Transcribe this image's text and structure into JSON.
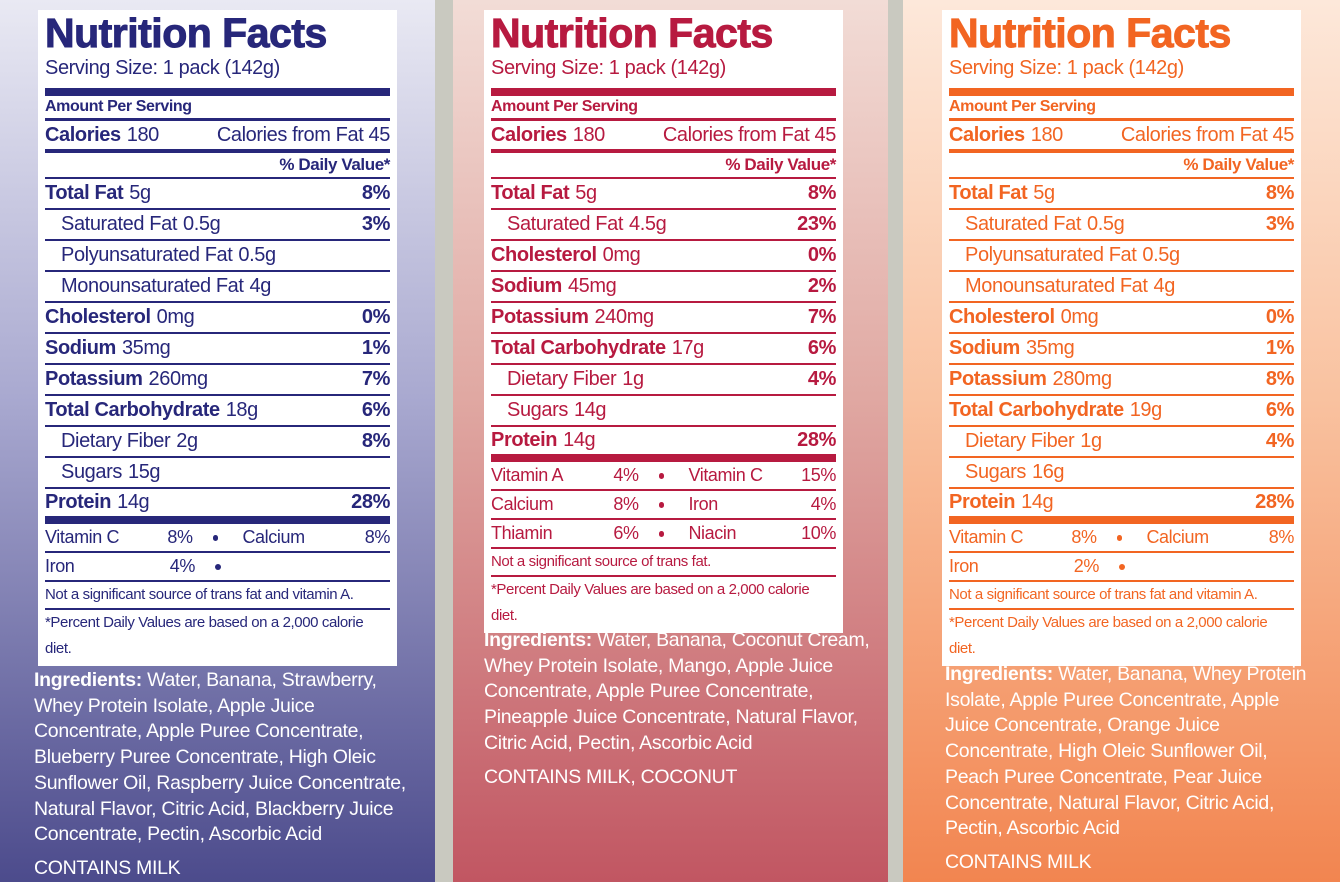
{
  "panels": [
    {
      "title": "Nutrition Facts",
      "serving": "Serving Size: 1 pack (142g)",
      "amount_header": "Amount Per Serving",
      "calories_label": "Calories",
      "calories_value": "180",
      "fat_calories": "Calories from Fat 45",
      "dv_header": "% Daily Value*",
      "nutrients": [
        {
          "name": "Total Fat",
          "amount": "5g",
          "dv": "8%"
        },
        {
          "name": "Saturated Fat",
          "amount": "0.5g",
          "dv": "3%",
          "indent": true
        },
        {
          "name": "Polyunsaturated Fat",
          "amount": "0.5g",
          "indent": true
        },
        {
          "name": "Monounsaturated Fat",
          "amount": "4g",
          "indent": true
        },
        {
          "name": "Cholesterol",
          "amount": "0mg",
          "dv": "0%"
        },
        {
          "name": "Sodium",
          "amount": "35mg",
          "dv": "1%"
        },
        {
          "name": "Potassium",
          "amount": "260mg",
          "dv": "7%"
        },
        {
          "name": "Total Carbohydrate",
          "amount": "18g",
          "dv": "6%"
        },
        {
          "name": "Dietary Fiber",
          "amount": "2g",
          "dv": "8%",
          "indent": true
        },
        {
          "name": "Sugars",
          "amount": "15g",
          "indent": true
        },
        {
          "name": "Protein",
          "amount": "14g",
          "dv": "28%"
        }
      ],
      "vitamins": [
        [
          {
            "name": "Vitamin C",
            "value": "8%"
          },
          {
            "name": "Calcium",
            "value": "8%"
          }
        ],
        [
          {
            "name": "Iron",
            "value": "4%"
          }
        ]
      ],
      "footnotes": [
        "Not a significant source of trans fat and vitamin A.",
        "*Percent Daily Values are based on a 2,000 calorie diet."
      ],
      "ingredients_label": "Ingredients:",
      "ingredients": "Water, Banana, Strawberry, Whey Protein Isolate, Apple Juice Concentrate, Apple Puree Concentrate, Blueberry Puree Concentrate, High Oleic Sunflower Oil, Raspberry Juice Concentrate, Natural Flavor, Citric Acid, Blackberry Juice Concentrate, Pectin, Ascorbic Acid",
      "contains": "CONTAINS MILK"
    },
    {
      "title": "Nutrition Facts",
      "serving": "Serving Size: 1 pack (142g)",
      "amount_header": "Amount Per Serving",
      "calories_label": "Calories",
      "calories_value": "180",
      "fat_calories": "Calories from Fat 45",
      "dv_header": "% Daily Value*",
      "nutrients": [
        {
          "name": "Total Fat",
          "amount": "5g",
          "dv": "8%"
        },
        {
          "name": "Saturated Fat",
          "amount": "4.5g",
          "dv": "23%",
          "indent": true
        },
        {
          "name": "Cholesterol",
          "amount": "0mg",
          "dv": "0%"
        },
        {
          "name": "Sodium",
          "amount": "45mg",
          "dv": "2%"
        },
        {
          "name": "Potassium",
          "amount": "240mg",
          "dv": "7%"
        },
        {
          "name": "Total Carbohydrate",
          "amount": "17g",
          "dv": "6%"
        },
        {
          "name": "Dietary Fiber",
          "amount": "1g",
          "dv": "4%",
          "indent": true
        },
        {
          "name": "Sugars",
          "amount": "14g",
          "indent": true
        },
        {
          "name": "Protein",
          "amount": "14g",
          "dv": "28%"
        }
      ],
      "vitamins": [
        [
          {
            "name": "Vitamin A",
            "value": "4%"
          },
          {
            "name": "Vitamin C",
            "value": "15%"
          }
        ],
        [
          {
            "name": "Calcium",
            "value": "8%"
          },
          {
            "name": "Iron",
            "value": "4%"
          }
        ],
        [
          {
            "name": "Thiamin",
            "value": "6%"
          },
          {
            "name": "Niacin",
            "value": "10%"
          }
        ]
      ],
      "footnotes": [
        "Not a significant source of trans fat.",
        "*Percent Daily Values are based on a 2,000 calorie diet."
      ],
      "ingredients_label": "Ingredients:",
      "ingredients": "Water, Banana, Coconut Cream, Whey Protein Isolate, Mango, Apple Juice Concentrate, Apple Puree Concentrate, Pineapple Juice Concentrate, Natural Flavor, Citric Acid, Pectin, Ascorbic Acid",
      "contains": "CONTAINS MILK, COCONUT"
    },
    {
      "title": "Nutrition Facts",
      "serving": "Serving Size: 1 pack (142g)",
      "amount_header": "Amount Per Serving",
      "calories_label": "Calories",
      "calories_value": "180",
      "fat_calories": "Calories from Fat 45",
      "dv_header": "% Daily Value*",
      "nutrients": [
        {
          "name": "Total Fat",
          "amount": "5g",
          "dv": "8%"
        },
        {
          "name": "Saturated Fat",
          "amount": "0.5g",
          "dv": "3%",
          "indent": true
        },
        {
          "name": "Polyunsaturated Fat",
          "amount": "0.5g",
          "indent": true
        },
        {
          "name": "Monounsaturated Fat",
          "amount": "4g",
          "indent": true
        },
        {
          "name": "Cholesterol",
          "amount": "0mg",
          "dv": "0%"
        },
        {
          "name": "Sodium",
          "amount": "35mg",
          "dv": "1%"
        },
        {
          "name": "Potassium",
          "amount": "280mg",
          "dv": "8%"
        },
        {
          "name": "Total Carbohydrate",
          "amount": "19g",
          "dv": "6%"
        },
        {
          "name": "Dietary Fiber",
          "amount": "1g",
          "dv": "4%",
          "indent": true
        },
        {
          "name": "Sugars",
          "amount": "16g",
          "indent": true
        },
        {
          "name": "Protein",
          "amount": "14g",
          "dv": "28%"
        }
      ],
      "vitamins": [
        [
          {
            "name": "Vitamin C",
            "value": "8%"
          },
          {
            "name": "Calcium",
            "value": "8%"
          }
        ],
        [
          {
            "name": "Iron",
            "value": "2%"
          }
        ]
      ],
      "footnotes": [
        "Not a significant source of trans fat and vitamin A.",
        "*Percent Daily Values are based on a 2,000 calorie diet."
      ],
      "ingredients_label": "Ingredients:",
      "ingredients": "Water, Banana, Whey Protein Isolate, Apple Puree Concentrate, Apple Juice Concentrate, Orange Juice Concentrate, High Oleic Sunflower Oil, Peach Puree Concentrate, Pear Juice Concentrate, Natural Flavor, Citric Acid, Pectin, Ascorbic Acid",
      "contains": "CONTAINS MILK"
    }
  ]
}
